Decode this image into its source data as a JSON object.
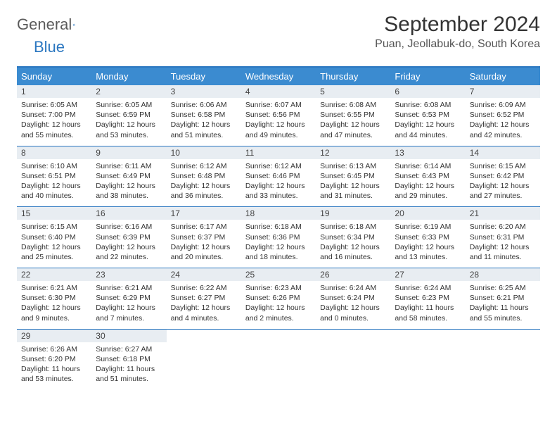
{
  "brand": {
    "general": "General",
    "blue": "Blue"
  },
  "title": "September 2024",
  "location": "Puan, Jeollabuk-do, South Korea",
  "colors": {
    "accent": "#3b8bd0",
    "accent_border": "#2b77c0",
    "daynum_bg": "#e8edf2",
    "text": "#333333"
  },
  "day_headers": [
    "Sunday",
    "Monday",
    "Tuesday",
    "Wednesday",
    "Thursday",
    "Friday",
    "Saturday"
  ],
  "weeks": [
    [
      {
        "n": "1",
        "sunrise": "Sunrise: 6:05 AM",
        "sunset": "Sunset: 7:00 PM",
        "day1": "Daylight: 12 hours",
        "day2": "and 55 minutes."
      },
      {
        "n": "2",
        "sunrise": "Sunrise: 6:05 AM",
        "sunset": "Sunset: 6:59 PM",
        "day1": "Daylight: 12 hours",
        "day2": "and 53 minutes."
      },
      {
        "n": "3",
        "sunrise": "Sunrise: 6:06 AM",
        "sunset": "Sunset: 6:58 PM",
        "day1": "Daylight: 12 hours",
        "day2": "and 51 minutes."
      },
      {
        "n": "4",
        "sunrise": "Sunrise: 6:07 AM",
        "sunset": "Sunset: 6:56 PM",
        "day1": "Daylight: 12 hours",
        "day2": "and 49 minutes."
      },
      {
        "n": "5",
        "sunrise": "Sunrise: 6:08 AM",
        "sunset": "Sunset: 6:55 PM",
        "day1": "Daylight: 12 hours",
        "day2": "and 47 minutes."
      },
      {
        "n": "6",
        "sunrise": "Sunrise: 6:08 AM",
        "sunset": "Sunset: 6:53 PM",
        "day1": "Daylight: 12 hours",
        "day2": "and 44 minutes."
      },
      {
        "n": "7",
        "sunrise": "Sunrise: 6:09 AM",
        "sunset": "Sunset: 6:52 PM",
        "day1": "Daylight: 12 hours",
        "day2": "and 42 minutes."
      }
    ],
    [
      {
        "n": "8",
        "sunrise": "Sunrise: 6:10 AM",
        "sunset": "Sunset: 6:51 PM",
        "day1": "Daylight: 12 hours",
        "day2": "and 40 minutes."
      },
      {
        "n": "9",
        "sunrise": "Sunrise: 6:11 AM",
        "sunset": "Sunset: 6:49 PM",
        "day1": "Daylight: 12 hours",
        "day2": "and 38 minutes."
      },
      {
        "n": "10",
        "sunrise": "Sunrise: 6:12 AM",
        "sunset": "Sunset: 6:48 PM",
        "day1": "Daylight: 12 hours",
        "day2": "and 36 minutes."
      },
      {
        "n": "11",
        "sunrise": "Sunrise: 6:12 AM",
        "sunset": "Sunset: 6:46 PM",
        "day1": "Daylight: 12 hours",
        "day2": "and 33 minutes."
      },
      {
        "n": "12",
        "sunrise": "Sunrise: 6:13 AM",
        "sunset": "Sunset: 6:45 PM",
        "day1": "Daylight: 12 hours",
        "day2": "and 31 minutes."
      },
      {
        "n": "13",
        "sunrise": "Sunrise: 6:14 AM",
        "sunset": "Sunset: 6:43 PM",
        "day1": "Daylight: 12 hours",
        "day2": "and 29 minutes."
      },
      {
        "n": "14",
        "sunrise": "Sunrise: 6:15 AM",
        "sunset": "Sunset: 6:42 PM",
        "day1": "Daylight: 12 hours",
        "day2": "and 27 minutes."
      }
    ],
    [
      {
        "n": "15",
        "sunrise": "Sunrise: 6:15 AM",
        "sunset": "Sunset: 6:40 PM",
        "day1": "Daylight: 12 hours",
        "day2": "and 25 minutes."
      },
      {
        "n": "16",
        "sunrise": "Sunrise: 6:16 AM",
        "sunset": "Sunset: 6:39 PM",
        "day1": "Daylight: 12 hours",
        "day2": "and 22 minutes."
      },
      {
        "n": "17",
        "sunrise": "Sunrise: 6:17 AM",
        "sunset": "Sunset: 6:37 PM",
        "day1": "Daylight: 12 hours",
        "day2": "and 20 minutes."
      },
      {
        "n": "18",
        "sunrise": "Sunrise: 6:18 AM",
        "sunset": "Sunset: 6:36 PM",
        "day1": "Daylight: 12 hours",
        "day2": "and 18 minutes."
      },
      {
        "n": "19",
        "sunrise": "Sunrise: 6:18 AM",
        "sunset": "Sunset: 6:34 PM",
        "day1": "Daylight: 12 hours",
        "day2": "and 16 minutes."
      },
      {
        "n": "20",
        "sunrise": "Sunrise: 6:19 AM",
        "sunset": "Sunset: 6:33 PM",
        "day1": "Daylight: 12 hours",
        "day2": "and 13 minutes."
      },
      {
        "n": "21",
        "sunrise": "Sunrise: 6:20 AM",
        "sunset": "Sunset: 6:31 PM",
        "day1": "Daylight: 12 hours",
        "day2": "and 11 minutes."
      }
    ],
    [
      {
        "n": "22",
        "sunrise": "Sunrise: 6:21 AM",
        "sunset": "Sunset: 6:30 PM",
        "day1": "Daylight: 12 hours",
        "day2": "and 9 minutes."
      },
      {
        "n": "23",
        "sunrise": "Sunrise: 6:21 AM",
        "sunset": "Sunset: 6:29 PM",
        "day1": "Daylight: 12 hours",
        "day2": "and 7 minutes."
      },
      {
        "n": "24",
        "sunrise": "Sunrise: 6:22 AM",
        "sunset": "Sunset: 6:27 PM",
        "day1": "Daylight: 12 hours",
        "day2": "and 4 minutes."
      },
      {
        "n": "25",
        "sunrise": "Sunrise: 6:23 AM",
        "sunset": "Sunset: 6:26 PM",
        "day1": "Daylight: 12 hours",
        "day2": "and 2 minutes."
      },
      {
        "n": "26",
        "sunrise": "Sunrise: 6:24 AM",
        "sunset": "Sunset: 6:24 PM",
        "day1": "Daylight: 12 hours",
        "day2": "and 0 minutes."
      },
      {
        "n": "27",
        "sunrise": "Sunrise: 6:24 AM",
        "sunset": "Sunset: 6:23 PM",
        "day1": "Daylight: 11 hours",
        "day2": "and 58 minutes."
      },
      {
        "n": "28",
        "sunrise": "Sunrise: 6:25 AM",
        "sunset": "Sunset: 6:21 PM",
        "day1": "Daylight: 11 hours",
        "day2": "and 55 minutes."
      }
    ],
    [
      {
        "n": "29",
        "sunrise": "Sunrise: 6:26 AM",
        "sunset": "Sunset: 6:20 PM",
        "day1": "Daylight: 11 hours",
        "day2": "and 53 minutes."
      },
      {
        "n": "30",
        "sunrise": "Sunrise: 6:27 AM",
        "sunset": "Sunset: 6:18 PM",
        "day1": "Daylight: 11 hours",
        "day2": "and 51 minutes."
      },
      null,
      null,
      null,
      null,
      null
    ]
  ]
}
